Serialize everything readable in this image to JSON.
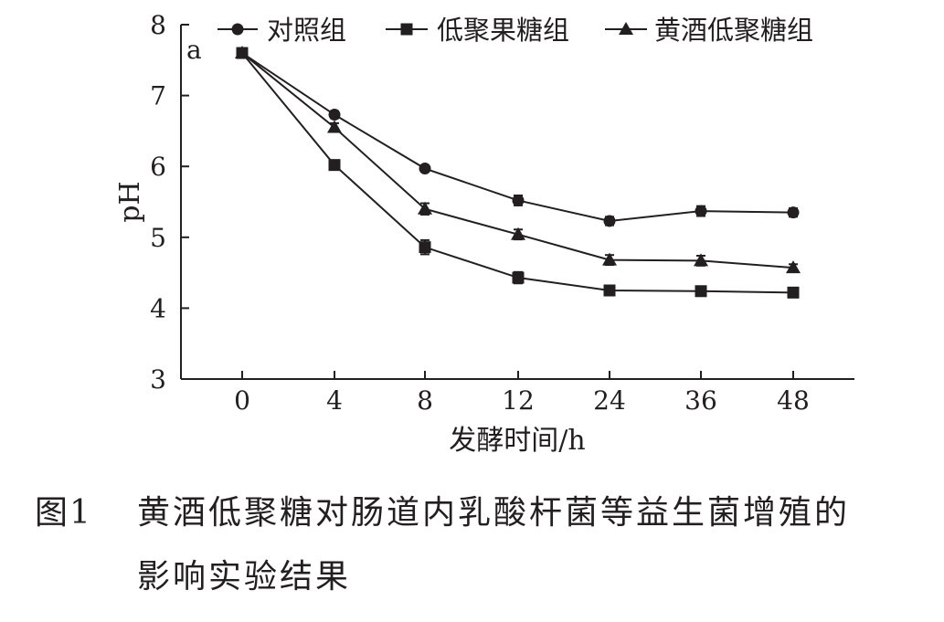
{
  "chart_data": {
    "type": "line",
    "panel_label": "a",
    "categories": [
      "0",
      "4",
      "8",
      "12",
      "24",
      "36",
      "48"
    ],
    "xlabel": "发酵时间/h",
    "ylabel": "pH",
    "ylim": [
      3,
      8
    ],
    "yticks": [
      "3",
      "4",
      "5",
      "6",
      "7",
      "8"
    ],
    "grid": false,
    "legend_position": "top",
    "error_bars": true,
    "series": [
      {
        "name": "对照组",
        "marker": "circle",
        "values": [
          7.6,
          6.73,
          5.97,
          5.52,
          5.23,
          5.37,
          5.35
        ],
        "errors": [
          0.04,
          0.05,
          0.04,
          0.07,
          0.06,
          0.07,
          0.06
        ]
      },
      {
        "name": "低聚果糖组",
        "marker": "square",
        "values": [
          7.6,
          6.02,
          4.86,
          4.43,
          4.25,
          4.24,
          4.22
        ],
        "errors": [
          0.04,
          0.04,
          0.1,
          0.08,
          0.04,
          0.04,
          0.04
        ]
      },
      {
        "name": "黄酒低聚糖组",
        "marker": "triangle",
        "values": [
          7.6,
          6.55,
          5.4,
          5.04,
          4.68,
          4.67,
          4.57
        ],
        "errors": [
          0.04,
          0.06,
          0.08,
          0.07,
          0.07,
          0.07,
          0.05
        ]
      }
    ]
  },
  "caption": {
    "figure_number": "图1",
    "line1": "黄酒低聚糖对肠道内乳酸杆菌等益生菌增殖的",
    "line2": "影响实验结果"
  },
  "colors": {
    "ink": "#231f20",
    "background": "#ffffff"
  }
}
